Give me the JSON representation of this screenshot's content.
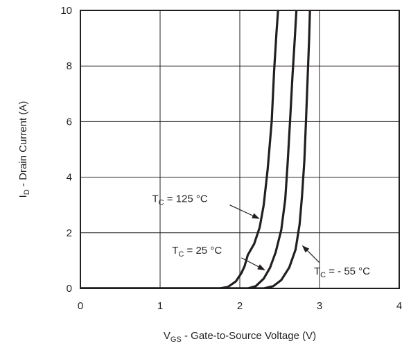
{
  "chart_data": {
    "type": "line",
    "title": "",
    "xlabel": {
      "main": "V",
      "sub": "GS",
      "rest": " - Gate-to-Source Voltage (V)"
    },
    "ylabel": {
      "main": "I",
      "sub": "D",
      "rest": " - Drain Current (A)"
    },
    "xlim": [
      0,
      4
    ],
    "ylim": [
      0,
      10
    ],
    "xticks": [
      "0",
      "1",
      "2",
      "3",
      "4"
    ],
    "yticks": [
      "0",
      "2",
      "4",
      "6",
      "8",
      "10"
    ],
    "grid": true,
    "series": [
      {
        "name": "TC = 125 °C",
        "label": {
          "main": "T",
          "sub": "C",
          "rest": " = 125 °C"
        },
        "points": [
          [
            0,
            0
          ],
          [
            1.75,
            0
          ],
          [
            1.85,
            0.05
          ],
          [
            1.95,
            0.25
          ],
          [
            2.02,
            0.55
          ],
          [
            2.06,
            0.8
          ],
          [
            2.1,
            1.2
          ],
          [
            2.18,
            1.6
          ],
          [
            2.25,
            2.2
          ],
          [
            2.3,
            3.0
          ],
          [
            2.35,
            4.3
          ],
          [
            2.4,
            6.0
          ],
          [
            2.43,
            7.8
          ],
          [
            2.46,
            9.2
          ],
          [
            2.48,
            10
          ]
        ]
      },
      {
        "name": "TC = 25 °C",
        "label": {
          "main": "T",
          "sub": "C",
          "rest": " = 25 °C"
        },
        "points": [
          [
            0,
            0
          ],
          [
            2.1,
            0
          ],
          [
            2.2,
            0.08
          ],
          [
            2.3,
            0.35
          ],
          [
            2.38,
            0.75
          ],
          [
            2.45,
            1.3
          ],
          [
            2.52,
            2.1
          ],
          [
            2.57,
            3.2
          ],
          [
            2.6,
            4.5
          ],
          [
            2.63,
            6.0
          ],
          [
            2.66,
            7.6
          ],
          [
            2.69,
            9.0
          ],
          [
            2.71,
            10
          ]
        ]
      },
      {
        "name": "TC = - 55 °C",
        "label": {
          "main": "T",
          "sub": "C",
          "rest": " = - 55 °C"
        },
        "points": [
          [
            0,
            0
          ],
          [
            2.3,
            0
          ],
          [
            2.42,
            0.08
          ],
          [
            2.52,
            0.3
          ],
          [
            2.62,
            0.75
          ],
          [
            2.7,
            1.4
          ],
          [
            2.75,
            2.3
          ],
          [
            2.78,
            3.3
          ],
          [
            2.81,
            4.6
          ],
          [
            2.83,
            6.0
          ],
          [
            2.85,
            7.5
          ],
          [
            2.87,
            9.0
          ],
          [
            2.88,
            10
          ]
        ]
      }
    ],
    "annotations": [
      {
        "series": 0,
        "label_at": [
          0.9,
          3.1
        ],
        "arrow_to": [
          2.25,
          2.5
        ]
      },
      {
        "series": 1,
        "label_at": [
          1.15,
          1.25
        ],
        "arrow_to": [
          2.32,
          0.65
        ]
      },
      {
        "series": 2,
        "label_at": [
          2.93,
          0.5
        ],
        "arrow_to": [
          2.78,
          1.55
        ]
      }
    ]
  }
}
